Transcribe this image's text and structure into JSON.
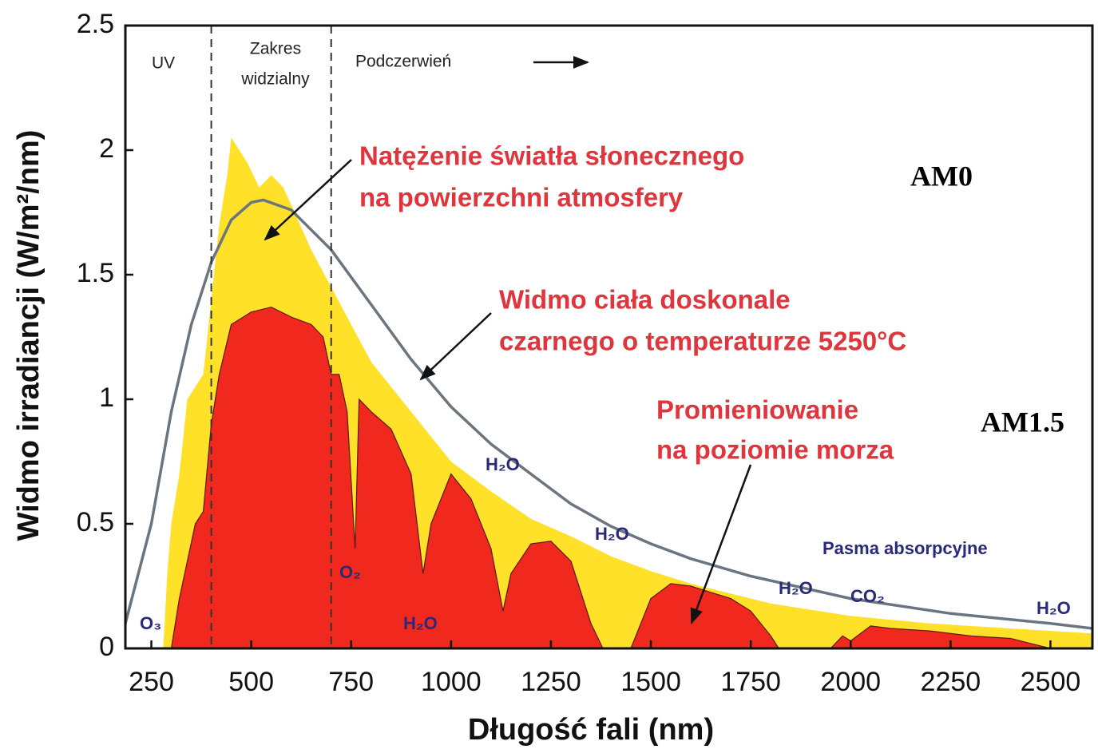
{
  "chart_data": {
    "type": "area",
    "xlabel": "Długość fali (nm)",
    "ylabel": "Widmo irradiancji (W/m²/nm)",
    "xlim": [
      185,
      2605
    ],
    "ylim": [
      0,
      2.5
    ],
    "xticks": [
      250,
      500,
      750,
      1000,
      1250,
      1500,
      1750,
      2000,
      2250,
      2500
    ],
    "yticks": [
      0,
      0.5,
      1,
      1.5,
      2,
      2.5
    ],
    "boundaries": [
      400,
      700
    ],
    "series": [
      {
        "name": "AM0",
        "color": "#ffe12a",
        "x": [
          280,
          290,
          300,
          320,
          340,
          360,
          380,
          400,
          420,
          440,
          450,
          470,
          490,
          520,
          550,
          580,
          600,
          650,
          700,
          750,
          800,
          900,
          1000,
          1100,
          1200,
          1300,
          1400,
          1500,
          1600,
          1700,
          1800,
          2000,
          2200,
          2400,
          2605
        ],
        "values": [
          0,
          0.3,
          0.5,
          0.7,
          1.0,
          1.05,
          1.1,
          1.4,
          1.7,
          1.9,
          2.05,
          2.0,
          1.95,
          1.85,
          1.9,
          1.85,
          1.78,
          1.6,
          1.45,
          1.3,
          1.15,
          0.95,
          0.75,
          0.63,
          0.52,
          0.45,
          0.37,
          0.31,
          0.26,
          0.22,
          0.18,
          0.13,
          0.1,
          0.08,
          0.06
        ]
      },
      {
        "name": "AM1.5",
        "color": "#f0281e",
        "x": [
          300,
          320,
          360,
          380,
          400,
          420,
          450,
          500,
          550,
          600,
          650,
          680,
          700,
          720,
          740,
          760,
          770,
          800,
          850,
          900,
          930,
          950,
          1000,
          1050,
          1100,
          1130,
          1150,
          1200,
          1250,
          1300,
          1350,
          1380,
          1450,
          1500,
          1550,
          1600,
          1700,
          1750,
          1800,
          1820,
          1950,
          1980,
          2000,
          2050,
          2100,
          2200,
          2300,
          2400,
          2450,
          2500
        ],
        "values": [
          0,
          0.2,
          0.5,
          0.55,
          0.9,
          1.1,
          1.3,
          1.35,
          1.37,
          1.33,
          1.3,
          1.25,
          1.1,
          1.1,
          0.95,
          0.4,
          1.0,
          0.95,
          0.88,
          0.7,
          0.3,
          0.5,
          0.7,
          0.6,
          0.4,
          0.15,
          0.3,
          0.42,
          0.43,
          0.35,
          0.1,
          0,
          0,
          0.2,
          0.26,
          0.25,
          0.2,
          0.15,
          0.05,
          0,
          0,
          0.05,
          0.03,
          0.09,
          0.08,
          0.07,
          0.05,
          0.04,
          0.02,
          0
        ]
      },
      {
        "type": "line",
        "color": "#6b7580",
        "x": [
          185,
          250,
          300,
          350,
          400,
          450,
          500,
          530,
          600,
          700,
          800,
          900,
          1000,
          1100,
          1200,
          1300,
          1400,
          1500,
          1600,
          1750,
          2000,
          2250,
          2500,
          2605
        ],
        "values": [
          0.1,
          0.5,
          0.95,
          1.3,
          1.55,
          1.72,
          1.79,
          1.8,
          1.76,
          1.6,
          1.38,
          1.16,
          0.97,
          0.82,
          0.7,
          0.58,
          0.49,
          0.42,
          0.36,
          0.29,
          0.2,
          0.14,
          0.1,
          0.08
        ]
      }
    ],
    "annotations": [
      [
        "UV"
      ],
      [
        "Zakres",
        "widzialny"
      ],
      [
        "Podczerwień"
      ],
      [
        "Natężenie światła słonecznego",
        "na powierzchni atmosfery"
      ],
      [
        "Widmo ciała doskonale",
        "czarnego o temperaturze 5250°C"
      ],
      [
        "Promieniowanie",
        "na poziomie morza"
      ],
      [
        "H₂O"
      ],
      [
        "H₂O"
      ],
      [
        "O₂"
      ],
      [
        "H₂O"
      ],
      [
        "O₃"
      ],
      [
        "Pasma absorpcyjne"
      ],
      [
        "H₂O"
      ],
      [
        "CO₂"
      ],
      [
        "H₂O"
      ]
    ]
  }
}
